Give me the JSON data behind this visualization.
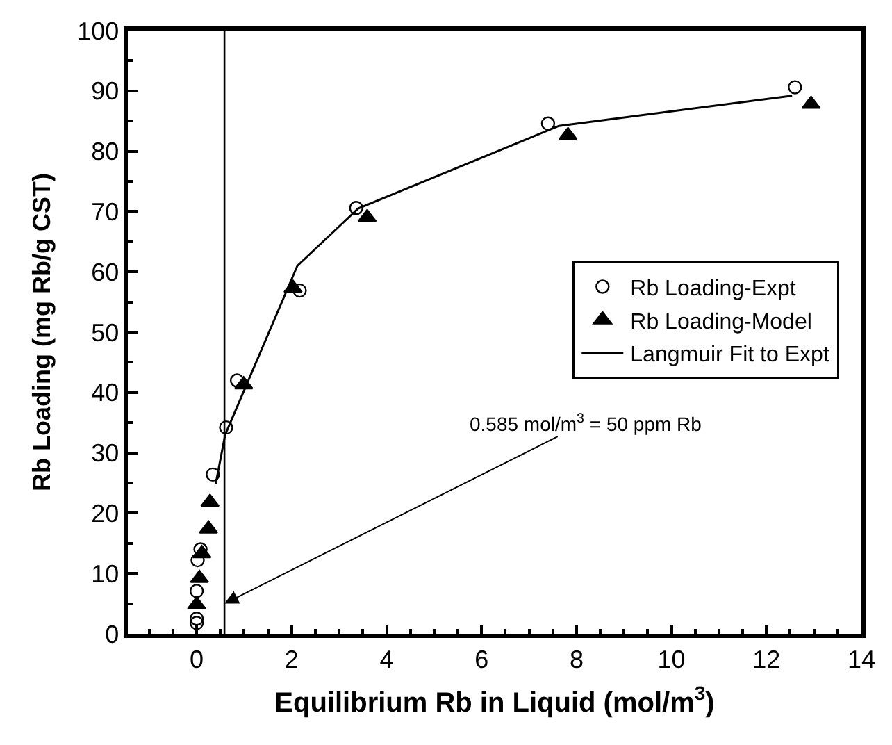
{
  "chart_data": {
    "type": "scatter",
    "xlabel": "Equilibrium Rb in Liquid (mol/m$^{3}$)",
    "ylabel": "Rb Loading (mg Rb/g CST)",
    "xlim": [
      -1.45,
      14
    ],
    "xticks": [
      0,
      2,
      4,
      6,
      8,
      10,
      12,
      14
    ],
    "ylim": [
      0,
      100
    ],
    "yticks": [
      0,
      10,
      20,
      30,
      40,
      50,
      60,
      70,
      80,
      90,
      100
    ],
    "legend": "right",
    "series": [
      {
        "name": "Rb Loading-Expt",
        "marker": "circle",
        "color": "#000000",
        "x": [
          0,
          0,
          0,
          0.02,
          0.08,
          0.34,
          0.62,
          0.85,
          2.17,
          3.36,
          7.4,
          12.6
        ],
        "values": [
          1.8,
          2.5,
          7.1,
          12.2,
          14,
          26.4,
          34.2,
          42,
          56.9,
          70.6,
          84.6,
          90.6
        ]
      },
      {
        "name": "Rb Loading-Model",
        "marker": "triangle",
        "color": "#000000",
        "x": [
          0,
          0.06,
          0.11,
          0.25,
          0.28,
          0.99,
          2.03,
          3.59,
          7.82,
          12.94
        ],
        "values": [
          4.8,
          9.2,
          13.3,
          17.4,
          21.8,
          41.3,
          57.3,
          69,
          82.6,
          87.8
        ]
      },
      {
        "name": "Langmuir Fit to Expt",
        "type": "line",
        "marker": "none",
        "line_style": "solid",
        "color": "#000000",
        "x": [
          0.4,
          0.6,
          2.12,
          3.4,
          7.63,
          12.54
        ],
        "values": [
          24.8,
          33,
          61,
          70.5,
          84.2,
          89.2
        ]
      }
    ],
    "ref_lines": [
      {
        "axis": "x",
        "value": 0.585,
        "color": "#000000"
      }
    ],
    "annotations": [
      {
        "text": "0.585 mol/m$^{3}$ = 50 ppm Rb",
        "x": 0.585,
        "y": 5
      }
    ]
  }
}
